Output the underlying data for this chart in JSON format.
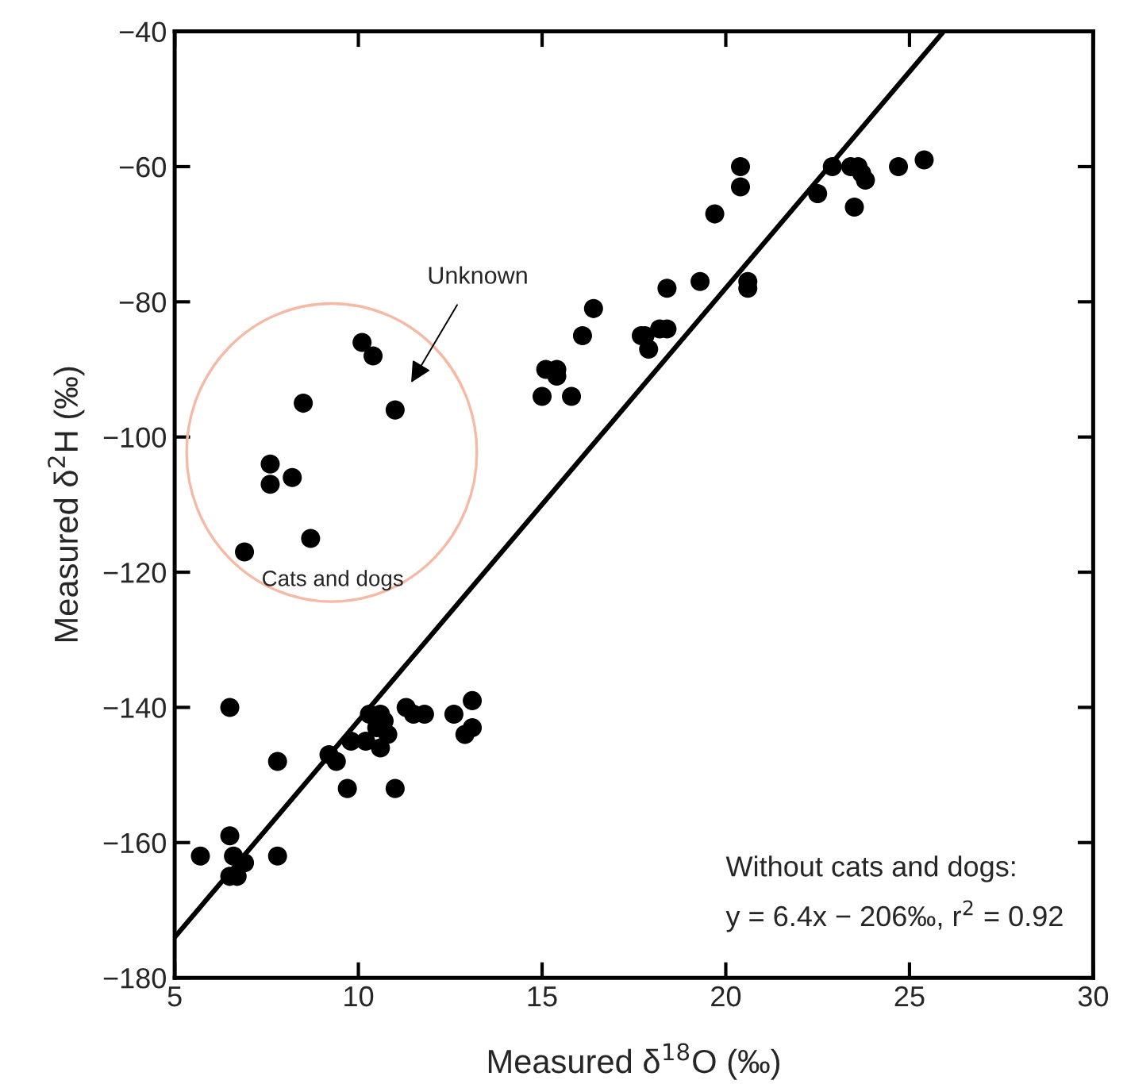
{
  "chart_data": {
    "type": "scatter",
    "xlabel": "Measured δ$^{18}$O (‰)",
    "ylabel": "Measured δ$^{2}$H (‰)",
    "series": [
      {
        "color": "#000000",
        "marker": "circle",
        "x": [
          5.7,
          6.5,
          6.5,
          6.6,
          6.5,
          6.7,
          6.9,
          7.8,
          7.8,
          9.2,
          9.4,
          9.8,
          9.7,
          10.2,
          10.3,
          10.6,
          10.7,
          10.6,
          10.8,
          10.5,
          11.0,
          11.3,
          11.5,
          11.8,
          12.6,
          12.9,
          13.1,
          13.1,
          6.9,
          7.6,
          7.6,
          8.2,
          8.5,
          8.7,
          10.1,
          10.4,
          11.0,
          15.0,
          15.1,
          15.4,
          15.4,
          15.8,
          16.1,
          16.4,
          17.7,
          17.9,
          17.8,
          18.2,
          18.4,
          18.4,
          19.3,
          19.7,
          20.4,
          20.4,
          20.6,
          20.6,
          22.5,
          22.9,
          23.4,
          23.5,
          23.6,
          23.7,
          23.8,
          24.7,
          25.4
        ],
        "values": [
          -162,
          -140,
          -159,
          -162,
          -165,
          -165,
          -163,
          -148,
          -162,
          -147,
          -148,
          -145,
          -152,
          -145,
          -141,
          -141,
          -142,
          -146,
          -144,
          -143,
          -152,
          -140,
          -141,
          -141,
          -141,
          -144,
          -139,
          -143,
          -117,
          -104,
          -107,
          -106,
          -95,
          -115,
          -86,
          -88,
          -96,
          -94,
          -90,
          -90,
          -91,
          -94,
          -85,
          -81,
          -85,
          -87,
          -85,
          -84,
          -84,
          -78,
          -77,
          -67,
          -60,
          -63,
          -77,
          -78,
          -64,
          -60,
          -60,
          -66,
          -60,
          -61,
          -62,
          -60,
          -59
        ]
      },
      {
        "type": "line",
        "color": "#000000",
        "line_style": "solid",
        "x": [
          5,
          25.9
        ],
        "values": [
          -174,
          -40.2
        ]
      }
    ],
    "xlim": [
      5,
      30
    ],
    "xticks": [
      5,
      10,
      15,
      20,
      25,
      30
    ],
    "ylim": [
      -180,
      -40
    ],
    "yticks": [
      {
        "value": -180,
        "label": "−180"
      },
      {
        "value": -160,
        "label": "−160"
      },
      {
        "value": -140,
        "label": "−140"
      },
      {
        "value": -120,
        "label": "−120"
      },
      {
        "value": -100,
        "label": "−100"
      },
      {
        "value": -80,
        "label": "−80"
      },
      {
        "value": -60,
        "label": "−60"
      },
      {
        "value": -40,
        "label": "−40"
      }
    ],
    "grid": false,
    "legend": false,
    "annotations": [
      "Unknown",
      "Cats and dogs",
      "Without cats and dogs:",
      "y = 6.4x − 206‰, r$^{2}$ = 0.92"
    ]
  }
}
